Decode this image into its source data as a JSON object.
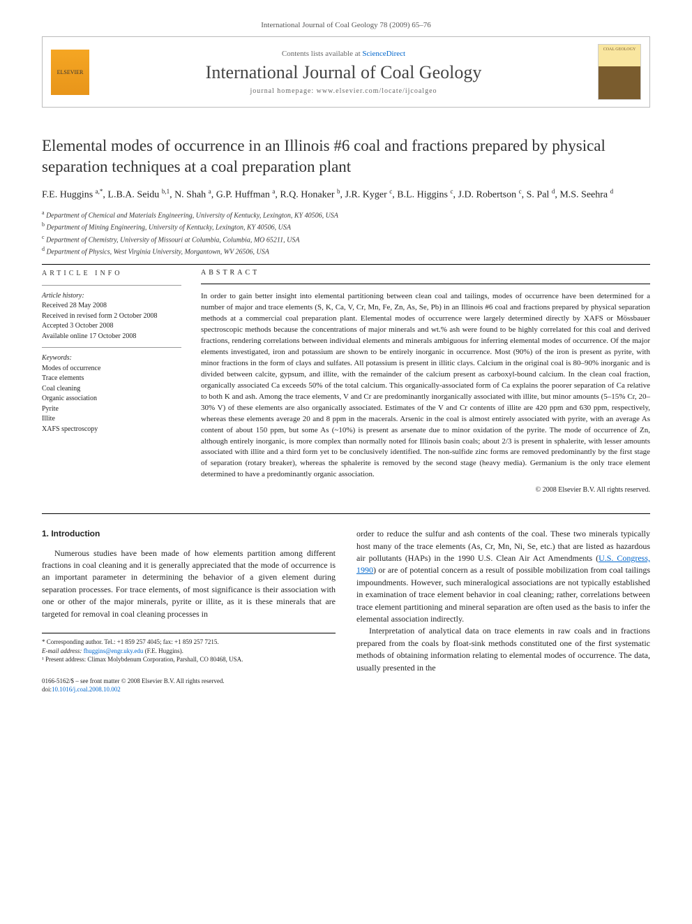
{
  "journal_ref": "International Journal of Coal Geology 78 (2009) 65–76",
  "header": {
    "contents_prefix": "Contents lists available at ",
    "contents_link": "ScienceDirect",
    "journal_name": "International Journal of Coal Geology",
    "homepage_label": "journal homepage: www.elsevier.com/locate/ijcoalgeo",
    "elsevier_label": "ELSEVIER",
    "cover_label": "COAL GEOLOGY"
  },
  "article": {
    "title": "Elemental modes of occurrence in an Illinois #6 coal and fractions prepared by physical separation techniques at a coal preparation plant",
    "authors_html": "F.E. Huggins <sup>a,*</sup>, L.B.A. Seidu <sup>b,1</sup>, N. Shah <sup>a</sup>, G.P. Huffman <sup>a</sup>, R.Q. Honaker <sup>b</sup>, J.R. Kyger <sup>c</sup>, B.L. Higgins <sup>c</sup>, J.D. Robertson <sup>c</sup>, S. Pal <sup>d</sup>, M.S. Seehra <sup>d</sup>",
    "affiliations": [
      {
        "key": "a",
        "text": "Department of Chemical and Materials Engineering, University of Kentucky, Lexington, KY 40506, USA"
      },
      {
        "key": "b",
        "text": "Department of Mining Engineering, University of Kentucky, Lexington, KY 40506, USA"
      },
      {
        "key": "c",
        "text": "Department of Chemistry, University of Missouri at Columbia, Columbia, MO 65211, USA"
      },
      {
        "key": "d",
        "text": "Department of Physics, West Virginia University, Morgantown, WV 26506, USA"
      }
    ]
  },
  "info": {
    "heading": "ARTICLE INFO",
    "history_label": "Article history:",
    "history": [
      "Received 28 May 2008",
      "Received in revised form 2 October 2008",
      "Accepted 3 October 2008",
      "Available online 17 October 2008"
    ],
    "keywords_label": "Keywords:",
    "keywords": [
      "Modes of occurrence",
      "Trace elements",
      "Coal cleaning",
      "Organic association",
      "Pyrite",
      "Illite",
      "XAFS spectroscopy"
    ]
  },
  "abstract": {
    "heading": "ABSTRACT",
    "text": "In order to gain better insight into elemental partitioning between clean coal and tailings, modes of occurrence have been determined for a number of major and trace elements (S, K, Ca, V, Cr, Mn, Fe, Zn, As, Se, Pb) in an Illinois #6 coal and fractions prepared by physical separation methods at a commercial coal preparation plant. Elemental modes of occurrence were largely determined directly by XAFS or Mössbauer spectroscopic methods because the concentrations of major minerals and wt.% ash were found to be highly correlated for this coal and derived fractions, rendering correlations between individual elements and minerals ambiguous for inferring elemental modes of occurrence. Of the major elements investigated, iron and potassium are shown to be entirely inorganic in occurrence. Most (90%) of the iron is present as pyrite, with minor fractions in the form of clays and sulfates. All potassium is present in illitic clays. Calcium in the original coal is 80–90% inorganic and is divided between calcite, gypsum, and illite, with the remainder of the calcium present as carboxyl-bound calcium. In the clean coal fraction, organically associated Ca exceeds 50% of the total calcium. This organically-associated form of Ca explains the poorer separation of Ca relative to both K and ash. Among the trace elements, V and Cr are predominantly inorganically associated with illite, but minor amounts (5–15% Cr, 20–30% V) of these elements are also organically associated. Estimates of the V and Cr contents of illite are 420 ppm and 630 ppm, respectively, whereas these elements average 20 and 8 ppm in the macerals. Arsenic in the coal is almost entirely associated with pyrite, with an average As content of about 150 ppm, but some As (~10%) is present as arsenate due to minor oxidation of the pyrite. The mode of occurrence of Zn, although entirely inorganic, is more complex than normally noted for Illinois basin coals; about 2/3 is present in sphalerite, with lesser amounts associated with illite and a third form yet to be conclusively identified. The non-sulfide zinc forms are removed predominantly by the first stage of separation (rotary breaker), whereas the sphalerite is removed by the second stage (heavy media). Germanium is the only trace element determined to have a predominantly organic association.",
    "copyright": "© 2008 Elsevier B.V. All rights reserved."
  },
  "body": {
    "section_heading": "1. Introduction",
    "col1_p1": "Numerous studies have been made of how elements partition among different fractions in coal cleaning and it is generally appreciated that the mode of occurrence is an important parameter in determining the behavior of a given element during separation processes. For trace elements, of most significance is their association with one or other of the major minerals, pyrite or illite, as it is these minerals that are targeted for removal in coal cleaning processes in",
    "col2_p1_pre": "order to reduce the sulfur and ash contents of the coal. These two minerals typically host many of the trace elements (As, Cr, Mn, Ni, Se, etc.) that are listed as hazardous air pollutants (HAPs) in the 1990 U.S. Clean Air Act Amendments (",
    "col2_p1_link": "U.S. Congress, 1990",
    "col2_p1_post": ") or are of potential concern as a result of possible mobilization from coal tailings impoundments. However, such mineralogical associations are not typically established in examination of trace element behavior in coal cleaning; rather, correlations between trace element partitioning and mineral separation are often used as the basis to infer the elemental association indirectly.",
    "col2_p2": "Interpretation of analytical data on trace elements in raw coals and in fractions prepared from the coals by float-sink methods constituted one of the first systematic methods of obtaining information relating to elemental modes of occurrence. The data, usually presented in the"
  },
  "footnotes": {
    "corresponding": "* Corresponding author. Tel.: +1 859 257 4045; fax: +1 859 257 7215.",
    "email_label": "E-mail address:",
    "email": "fhuggins@engr.uky.edu",
    "email_suffix": "(F.E. Huggins).",
    "note1": "¹ Present address: Climax Molybdenum Corporation, Parshall, CO 80468, USA."
  },
  "doi": {
    "line1": "0166-5162/$ – see front matter © 2008 Elsevier B.V. All rights reserved.",
    "doi_label": "doi:",
    "doi_link": "10.1016/j.coal.2008.10.002"
  },
  "colors": {
    "link": "#0066cc",
    "text": "#222222",
    "rule": "#000000",
    "elsevier_bg": "#f5a623"
  }
}
